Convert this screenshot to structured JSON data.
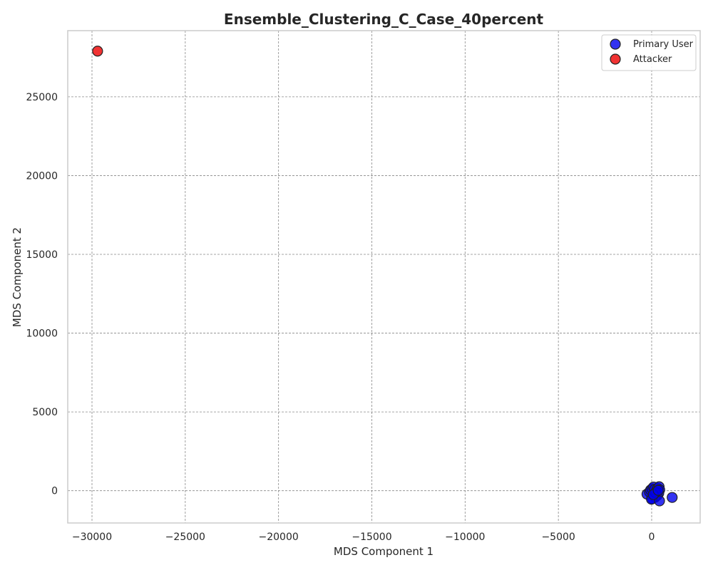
{
  "chart_data": {
    "type": "scatter",
    "title": "Ensemble_Clustering_C_Case_40percent",
    "xlabel": "MDS Component 1",
    "ylabel": "MDS Component 2",
    "xlim": [
      -31300,
      2600
    ],
    "ylim": [
      -2050,
      29200
    ],
    "xticks": [
      -30000,
      -25000,
      -20000,
      -15000,
      -10000,
      -5000,
      0
    ],
    "yticks": [
      0,
      5000,
      10000,
      15000,
      20000,
      25000
    ],
    "xtick_labels": [
      "−30000",
      "−25000",
      "−20000",
      "−15000",
      "−10000",
      "−5000",
      "0"
    ],
    "ytick_labels": [
      "0",
      "5000",
      "10000",
      "15000",
      "20000",
      "25000"
    ],
    "grid": true,
    "legend_position": "top-right",
    "series": [
      {
        "name": "Primary User",
        "color": "#0000ee",
        "points": [
          [
            -250,
            -220
          ],
          [
            -120,
            -80
          ],
          [
            -60,
            40
          ],
          [
            20,
            120
          ],
          [
            100,
            230
          ],
          [
            160,
            80
          ],
          [
            250,
            -30
          ],
          [
            320,
            160
          ],
          [
            400,
            250
          ],
          [
            430,
            60
          ],
          [
            380,
            -160
          ],
          [
            300,
            -300
          ],
          [
            180,
            -420
          ],
          [
            40,
            -500
          ],
          [
            -10,
            -540
          ],
          [
            420,
            -650
          ],
          [
            1100,
            -430
          ],
          [
            210,
            -120
          ],
          [
            90,
            -250
          ],
          [
            350,
            20
          ]
        ]
      },
      {
        "name": "Attacker",
        "color": "#ee0000",
        "points": [
          [
            -29700,
            27900
          ]
        ]
      }
    ]
  }
}
